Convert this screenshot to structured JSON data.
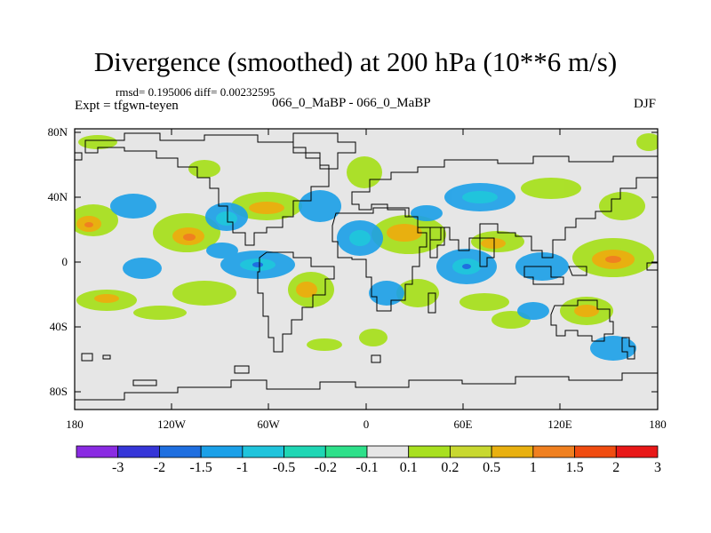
{
  "title": "Divergence (smoothed) at 200 hPa (10**6 m/s)",
  "stats": "rmsd= 0.195006  diff= 0.00232595",
  "expt": "Expt = tfgwn-teyen",
  "runs": "066_0_MaBP - 066_0_MaBP",
  "season": "DJF",
  "lat_ticks": [
    "80N",
    "40N",
    "0",
    "40S",
    "80S"
  ],
  "lon_ticks": [
    "180",
    "120W",
    "60W",
    "0",
    "60E",
    "120E",
    "180"
  ],
  "colorbar": {
    "labels": [
      "-3",
      "-2",
      "-1.5",
      "-1",
      "-0.5",
      "-0.2",
      "-0.1",
      "0.1",
      "0.2",
      "0.5",
      "1",
      "1.5",
      "2",
      "3"
    ],
    "colors": [
      "#8a2be2",
      "#3636d8",
      "#1f6fe0",
      "#1ba0e8",
      "#20c4dc",
      "#1fd6b4",
      "#2ee08a",
      "#e6e6e6",
      "#a8e020",
      "#c8d830",
      "#e8b010",
      "#f08020",
      "#f04c10",
      "#e81818"
    ]
  },
  "map": {
    "background_color": "#e6e6e6",
    "coast_color": "#000000"
  }
}
